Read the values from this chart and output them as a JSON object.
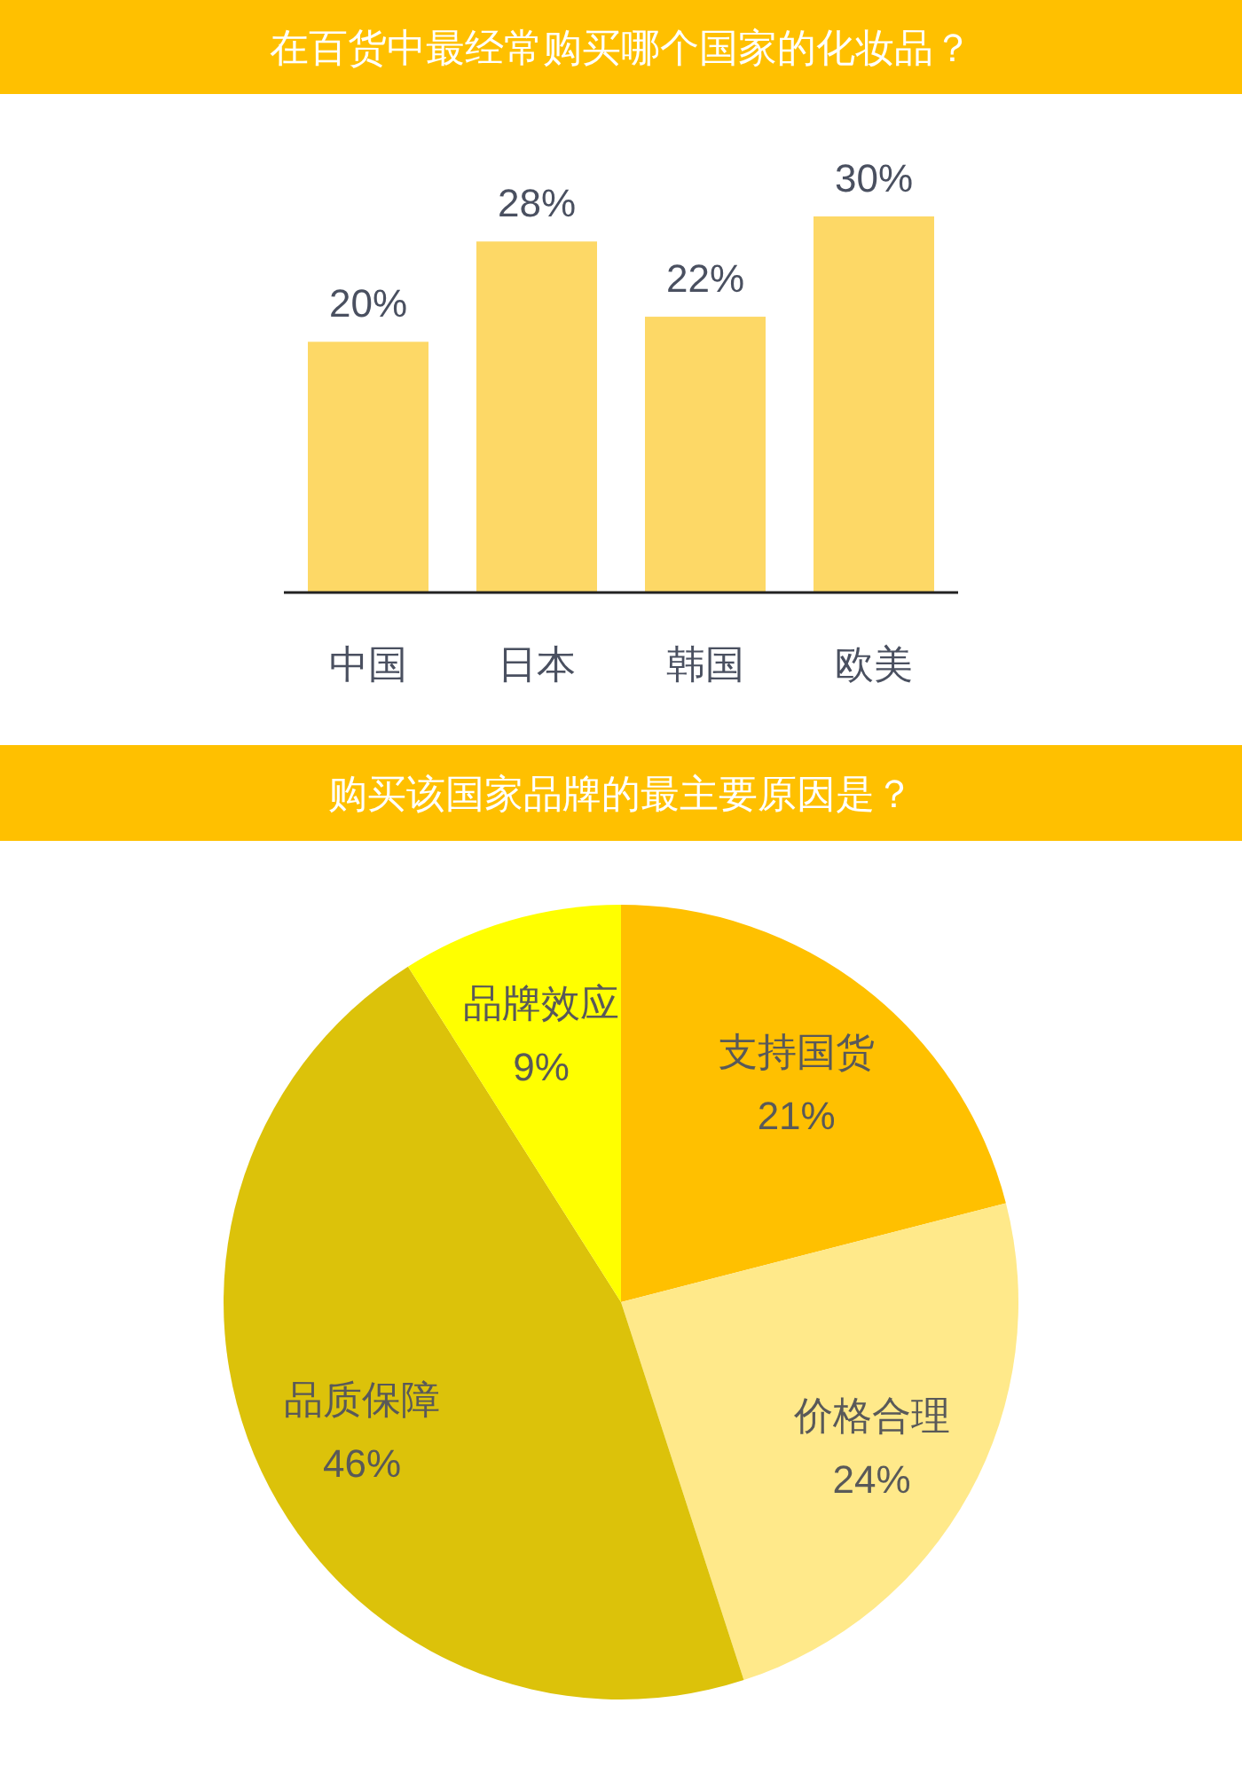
{
  "chart_data": [
    {
      "type": "bar",
      "title": "在百货中最经常购买哪个国家的化妆品？",
      "categories": [
        "中国",
        "日本",
        "韩国",
        "欧美"
      ],
      "values": [
        20,
        28,
        22,
        30
      ],
      "value_labels": [
        "20%",
        "28%",
        "22%",
        "30%"
      ],
      "color": "#fdd866"
    },
    {
      "type": "pie",
      "title": "购买该国家品牌的最主要原因是？",
      "categories": [
        "支持国货",
        "价格合理",
        "品质保障",
        "品牌效应"
      ],
      "values": [
        21,
        24,
        46,
        9
      ],
      "value_labels": [
        "21%",
        "24%",
        "46%",
        "9%"
      ],
      "colors": [
        "#ffc000",
        "#ffe98a",
        "#dcc20a",
        "#ffff00"
      ]
    }
  ]
}
